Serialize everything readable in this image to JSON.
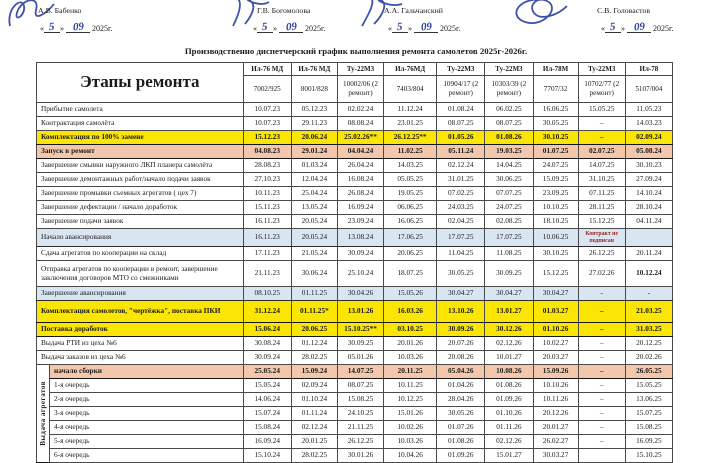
{
  "punct": {
    "q_open": "«",
    "q_close": "»"
  },
  "signatures": [
    {
      "name": "А.В. Бабенко",
      "day": "5",
      "month": "09",
      "year": "2025г."
    },
    {
      "name": "Г.В. Богомолова",
      "day": "5",
      "month": "09",
      "year": "2025г."
    },
    {
      "name": "А.А. Гальчанский",
      "day": "5",
      "month": "09",
      "year": "2025г."
    },
    {
      "name": "С.В. Головастов",
      "day": "5",
      "month": "09",
      "year": "2025г."
    }
  ],
  "title": "Производственно  диспетчерский график выполнения ремонта самолетов 2025г-2026г.",
  "table": {
    "stage_header": "Этапы ремонта",
    "group_label": "Выдача агрегатов",
    "group_start": 17,
    "group_span": 7,
    "columns": [
      {
        "type": "Ил-76 МД",
        "number": "7002/925"
      },
      {
        "type": "Ил-76 МД",
        "number": "8001/828"
      },
      {
        "type": "Ту-22М3",
        "number": "10002/06 (2 ремонт)"
      },
      {
        "type": "Ил-76МД",
        "number": "7403/804"
      },
      {
        "type": "Ту-22М3",
        "number": "10904/17 (2 ремонт)"
      },
      {
        "type": "Ту-22М3",
        "number": "10303/39 (2 ремонт)"
      },
      {
        "type": "Ил-78М",
        "number": "7707/32"
      },
      {
        "type": "Ту-22М3",
        "number": "10702/77 (2 ремонт)"
      },
      {
        "type": "Ил-78",
        "number": "5107/004"
      }
    ],
    "rows": [
      {
        "label": "Прибытие самолета",
        "style": "plain",
        "values": [
          "10.07.23",
          "05.12.23",
          "02.02.24",
          "11.12.24",
          "01.08.24",
          "06.02.25",
          "16.06.25",
          "15.05.25",
          "11.05.23"
        ]
      },
      {
        "label": "Контрактация самолёта",
        "style": "plain",
        "values": [
          "10.07.23",
          "29.11.23",
          "08.08.24",
          "23.01.25",
          "08.07.25",
          "08.07.25",
          "30.05.25",
          "–",
          "14.03.23"
        ]
      },
      {
        "label": "Комплектация по 100% замене",
        "style": "yellow",
        "values": [
          "15.12.23",
          "20.06.24",
          "25.02.26**",
          "26.12.25**",
          "01.05.26",
          "01.08.26",
          "30.10.25",
          "–",
          "02.09.24"
        ]
      },
      {
        "label": "Запуск в ремонт",
        "style": "pink",
        "values": [
          "04.08.23",
          "29.01.24",
          "04.04.24",
          "11.02.25",
          "05.11.24",
          "19.03.25",
          "01.07.25",
          "02.07.25",
          "05.08.24"
        ]
      },
      {
        "label": "Завершение смывки наружного ЛКП планера самолёта",
        "style": "plain",
        "values": [
          "28.08.23",
          "01.03.24",
          "26.04.24",
          "14.03.25",
          "02.12.24",
          "14.04.25",
          "24.07.25",
          "14.07.25",
          "30.10.23"
        ]
      },
      {
        "label": "Завершение демонтажных работ/начало подачи заявок",
        "style": "plain",
        "values": [
          "27.10.23",
          "12.04.24",
          "16.08.24",
          "05.05.25",
          "31.01.25",
          "30.06.25",
          "15.09.25",
          "31.10.25",
          "27.09.24"
        ]
      },
      {
        "label": "Завершение промывки съемных агрегатов ( цех 7)",
        "style": "plain",
        "values": [
          "10.11.23",
          "25.04.24",
          "26.08.24",
          "19.05.25",
          "07.02.25",
          "07.07.25",
          "23.09.25",
          "07.11.25",
          "14.10.24"
        ]
      },
      {
        "label": "Завершение дефектации / начало доработок",
        "style": "plain",
        "values": [
          "15.11.23",
          "13.05.24",
          "16.09.24",
          "06.06.25",
          "24.03.25",
          "24.07.25",
          "10.10.25",
          "28.11.25",
          "28.10.24"
        ]
      },
      {
        "label": "Завершение подачи заявок",
        "style": "plain",
        "values": [
          "16.11.23",
          "20.05.24",
          "23.09.24",
          "16.06.25",
          "02.04.25",
          "02.08.25",
          "18.10.25",
          "15.12.25",
          "04.11.24"
        ]
      },
      {
        "label": "Начало авансирования",
        "style": "blue",
        "note_col": 7,
        "values": [
          "16.11.23",
          "20.05.24",
          "13.08.24",
          "17.06.25",
          "17.07.25",
          "17.07.25",
          "10.06.25",
          "Контракт не подписан",
          ""
        ]
      },
      {
        "label": "Сдача агрегатов по кооперации на склад",
        "style": "plain",
        "values": [
          "17.11.23",
          "21.05.24",
          "30.09.24",
          "20.06.25",
          "11.04.25",
          "11.08.25",
          "30.10.25",
          "26.12.25",
          "20.11.24"
        ]
      },
      {
        "label": "Отправка агрегатов по кооперации в ремонт, завершение заключения договоров МТО со смежниками",
        "style": "plain",
        "bold_cols": [
          8
        ],
        "values": [
          "21.11.23",
          "30.06.24",
          "25.10.24",
          "18.07.25",
          "30.05.25",
          "30.09.25",
          "15.12.25",
          "27.02.26",
          "10.12.24"
        ]
      },
      {
        "label": "Завершение авансирования",
        "style": "blue",
        "values": [
          "08.10.25",
          "01.11.25",
          "30.04.26",
          "15.05.26",
          "30.04.27",
          "30.04.27",
          "30.04.27",
          "-",
          "-"
        ]
      },
      {
        "label": "Комплектация самолетов, \"чертёжка\", поставка ПКИ",
        "style": "yellow",
        "values": [
          "31.12.24",
          "01.11.25*",
          "13.01.26",
          "16.03.26",
          "13.10.26",
          "13.01.27",
          "01.03.27",
          "–",
          "21.03.25"
        ]
      },
      {
        "label": "Поставка доработок",
        "style": "yellow",
        "values": [
          "15.06.24",
          "20.06.25",
          "15.10.25**",
          "03.10.25",
          "30.09.26",
          "30.12.26",
          "01.10.26",
          "–",
          "31.03.25"
        ]
      },
      {
        "label": "Выдача РТИ  из цеха №6",
        "style": "plain",
        "values": [
          "30.08.24",
          "01.12.24",
          "30.09.25",
          "20.01.26",
          "20.07.26",
          "02.12.26",
          "10.02.27",
          "–",
          "20.12.25"
        ]
      },
      {
        "label": "Выдача заказов из цеха №6",
        "style": "plain",
        "values": [
          "30.09.24",
          "28.02.25",
          "05.01.26",
          "10.03.26",
          "20.08.26",
          "10.01.27",
          "20.03.27",
          "–",
          "20.02.26"
        ]
      },
      {
        "label": "начало сборки",
        "style": "pink",
        "values": [
          "25.05.24",
          "15.09.24",
          "14.07.25",
          "20.11.25",
          "05.04.26",
          "10.08.26",
          "15.09.26",
          "–",
          "26.05.25"
        ]
      },
      {
        "label": "1-я очередь",
        "style": "plain",
        "values": [
          "15.05.24",
          "02.09.24",
          "08.07.25",
          "10.11.25",
          "01.04.26",
          "01.08.26",
          "10.10.26",
          "–",
          "15.05.25"
        ]
      },
      {
        "label": "2-я очередь",
        "style": "plain",
        "values": [
          "14.06.24",
          "01.10.24",
          "15.08.25",
          "10.12.25",
          "28.04.26",
          "01.09.26",
          "10.11.26",
          "–",
          "13.06.25"
        ]
      },
      {
        "label": "3-я очередь",
        "style": "plain",
        "values": [
          "15.07.24",
          "01.11.24",
          "24.10.25",
          "15.01.26",
          "30.05.26",
          "01.10.26",
          "20.12.26",
          "–",
          "15.07.25"
        ]
      },
      {
        "label": "4-я очередь",
        "style": "plain",
        "values": [
          "15.08.24",
          "02.12.24",
          "21.11.25",
          "10.02.26",
          "01.07.26",
          "01.11.26",
          "20.01.27",
          "–",
          "15.08.25"
        ]
      },
      {
        "label": "5-я очередь",
        "style": "plain",
        "values": [
          "16.09.24",
          "20.01.25",
          "26.12.25",
          "10.03.26",
          "01.08.26",
          "02.12.26",
          "26.02.27",
          "–",
          "16.09.25"
        ]
      },
      {
        "label": "6-я очередь",
        "style": "plain",
        "values": [
          "15.10.24",
          "28.02.25",
          "30.01.26",
          "10.04.26",
          "01.09.26",
          "15.01.27",
          "30.03.27",
          "",
          "15.10.25"
        ]
      }
    ]
  },
  "colors": {
    "accent_blue_ink": "#2b3f9e",
    "highlight_yellow": "#fbe504",
    "highlight_pink": "#f3c7ab",
    "highlight_blue": "#d9e5f1",
    "note_red": "#9c2a21"
  }
}
